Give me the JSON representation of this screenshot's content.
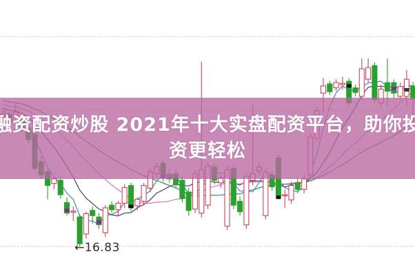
{
  "banner": {
    "line1": "融资配资炒股 2021年十大实盘配资平台，助你投",
    "line2": "资更轻松",
    "bg_color": "#b868a2",
    "text_color": "#ffffff"
  },
  "chart_data": {
    "type": "candlestick",
    "title": "",
    "low_annotation": "←16.83",
    "low_annotation_value": 16.83,
    "ylim": [
      16.6,
      20.17
    ],
    "grid": true,
    "gridline_levels": [
      20.03,
      18.91,
      17.87,
      16.83
    ],
    "legend_position": "none",
    "colors": {
      "up_candle": "#cb4256",
      "down_candle": "#2aa02f",
      "grid": "#b8b8b8",
      "background": "#ffffff",
      "overlay_pink": "#b868a2"
    },
    "ma_lines": [
      {
        "name": "MA4",
        "period": 4,
        "color": "#3d8fae"
      },
      {
        "name": "MA9",
        "period": 9,
        "color": "#4a4170"
      },
      {
        "name": "MA17",
        "period": 17,
        "color": "#d977c4"
      },
      {
        "name": "MA26",
        "period": 26,
        "color": "#2f8f55"
      }
    ],
    "ma_seed": {
      "start": 19.3,
      "end": 18.9,
      "count": 30
    },
    "candles": [
      [
        18.82,
        18.9,
        18.7,
        18.86
      ],
      [
        18.84,
        18.88,
        18.66,
        18.72
      ],
      [
        18.74,
        19.02,
        18.7,
        18.88
      ],
      [
        18.78,
        18.86,
        18.58,
        18.62
      ],
      [
        18.64,
        18.7,
        18.4,
        18.46
      ],
      [
        18.54,
        18.58,
        17.98,
        18.02
      ],
      [
        18.12,
        18.2,
        17.86,
        17.92
      ],
      [
        17.97,
        18.02,
        17.55,
        17.76
      ],
      [
        17.79,
        17.9,
        17.7,
        17.86
      ],
      [
        17.84,
        17.88,
        17.56,
        17.62
      ],
      [
        17.5,
        17.58,
        17.3,
        17.34
      ],
      [
        17.36,
        17.44,
        17.22,
        17.37
      ],
      [
        17.28,
        17.32,
        16.83,
        16.87
      ],
      [
        17.02,
        17.36,
        16.95,
        17.33
      ],
      [
        17.38,
        17.44,
        17.18,
        17.3
      ],
      [
        17.28,
        17.34,
        17.1,
        17.16
      ],
      [
        17.04,
        17.46,
        16.98,
        17.42
      ],
      [
        17.46,
        17.52,
        17.34,
        17.39
      ],
      [
        17.39,
        17.52,
        17.3,
        17.49
      ],
      [
        17.49,
        17.78,
        17.42,
        17.73
      ],
      [
        17.76,
        17.8,
        17.36,
        17.42
      ],
      [
        17.45,
        17.58,
        17.38,
        17.55
      ],
      [
        17.52,
        17.8,
        17.46,
        17.76
      ],
      [
        17.72,
        18.02,
        17.66,
        17.97
      ],
      [
        17.94,
        18.1,
        17.88,
        18.05
      ],
      [
        18.1,
        18.16,
        17.82,
        17.88
      ],
      [
        17.92,
        18.0,
        17.8,
        17.86
      ],
      [
        17.94,
        18.0,
        17.72,
        17.78
      ],
      [
        17.84,
        17.9,
        17.5,
        17.56
      ],
      [
        17.66,
        17.72,
        17.3,
        17.38
      ],
      [
        17.4,
        18.0,
        17.34,
        17.94
      ],
      [
        17.34,
        19.65,
        17.27,
        18.0
      ],
      [
        17.46,
        18.12,
        17.4,
        18.06
      ],
      [
        18.04,
        18.1,
        17.78,
        17.84
      ],
      [
        17.8,
        17.92,
        17.72,
        17.88
      ],
      [
        17.14,
        18.06,
        17.08,
        18.0
      ],
      [
        18.02,
        18.08,
        17.4,
        17.46
      ],
      [
        17.52,
        17.6,
        17.3,
        17.36
      ],
      [
        17.16,
        17.96,
        17.1,
        17.9
      ],
      [
        17.84,
        18.99,
        17.76,
        17.94
      ],
      [
        17.98,
        18.1,
        17.92,
        18.04
      ],
      [
        17.3,
        18.02,
        17.24,
        17.96
      ],
      [
        17.92,
        17.98,
        17.68,
        17.74
      ],
      [
        18.18,
        18.24,
        17.56,
        17.6
      ],
      [
        17.62,
        17.7,
        17.42,
        17.62
      ],
      [
        17.54,
        17.82,
        17.48,
        17.76
      ],
      [
        17.8,
        17.86,
        17.64,
        17.7
      ],
      [
        17.7,
        17.92,
        17.64,
        17.86
      ],
      [
        17.92,
        18.56,
        17.88,
        18.5
      ],
      [
        18.48,
        18.96,
        18.42,
        18.9
      ],
      [
        19.17,
        19.4,
        18.86,
        19.28
      ],
      [
        19.31,
        19.36,
        19.14,
        19.19
      ],
      [
        19.25,
        19.38,
        19.2,
        19.33
      ],
      [
        19.3,
        19.42,
        19.22,
        19.32
      ],
      [
        19.35,
        19.4,
        18.98,
        19.02
      ],
      [
        19.25,
        19.3,
        19.12,
        19.18
      ],
      [
        19.12,
        19.7,
        19.06,
        19.54
      ],
      [
        19.38,
        19.7,
        19.32,
        19.56
      ],
      [
        19.59,
        19.64,
        19.02,
        19.07
      ],
      [
        19.02,
        19.3,
        18.96,
        19.23
      ],
      [
        19.33,
        19.7,
        18.98,
        19.2
      ],
      [
        19.33,
        19.38,
        19.1,
        19.17
      ],
      [
        19.12,
        19.33,
        19.06,
        19.27
      ],
      [
        19.12,
        19.52,
        18.98,
        19.38
      ],
      [
        19.28,
        19.34,
        18.6,
        19.08
      ]
    ],
    "marks": [
      {
        "i": 10,
        "p": 17.38,
        "color": "#7a2f96"
      },
      {
        "i": 15,
        "p": 17.2,
        "color": "#7a2f96"
      },
      {
        "i": 20,
        "p": 17.44,
        "color": "#111111"
      },
      {
        "i": 25,
        "p": 17.9,
        "color": "#7a2f96"
      },
      {
        "i": 43,
        "p": 17.58,
        "color": "#111111"
      },
      {
        "i": 54,
        "p": 19.28,
        "color": "#111111"
      },
      {
        "i": 61,
        "p": 19.24,
        "color": "#7a2f96"
      },
      {
        "i": 63,
        "p": 19.22,
        "color": "#333333"
      }
    ]
  }
}
